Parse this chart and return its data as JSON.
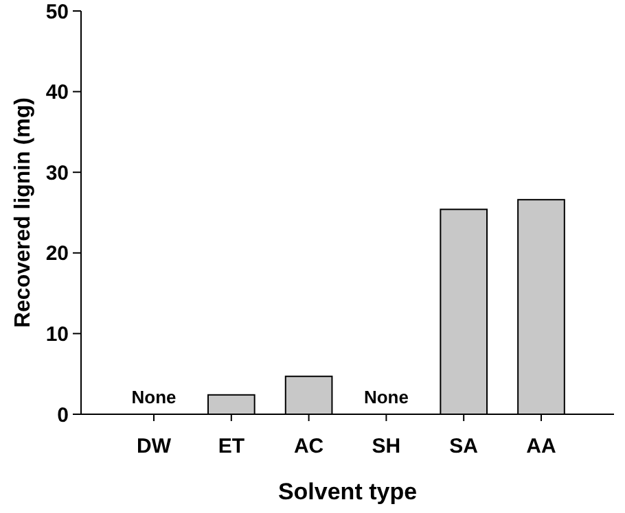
{
  "chart_data": {
    "type": "bar",
    "xlabel": "Solvent type",
    "ylabel": "Recovered lignin (mg)",
    "categories": [
      "DW",
      "ET",
      "AC",
      "SH",
      "SA",
      "AA"
    ],
    "values": [
      null,
      2.4,
      4.7,
      null,
      25.4,
      26.6
    ],
    "color": "#c8c8c8",
    "ylim": [
      0,
      50
    ],
    "yticks": [
      0,
      10,
      20,
      30,
      40,
      50
    ],
    "grid": false,
    "annotations": [
      "None",
      "None"
    ]
  }
}
